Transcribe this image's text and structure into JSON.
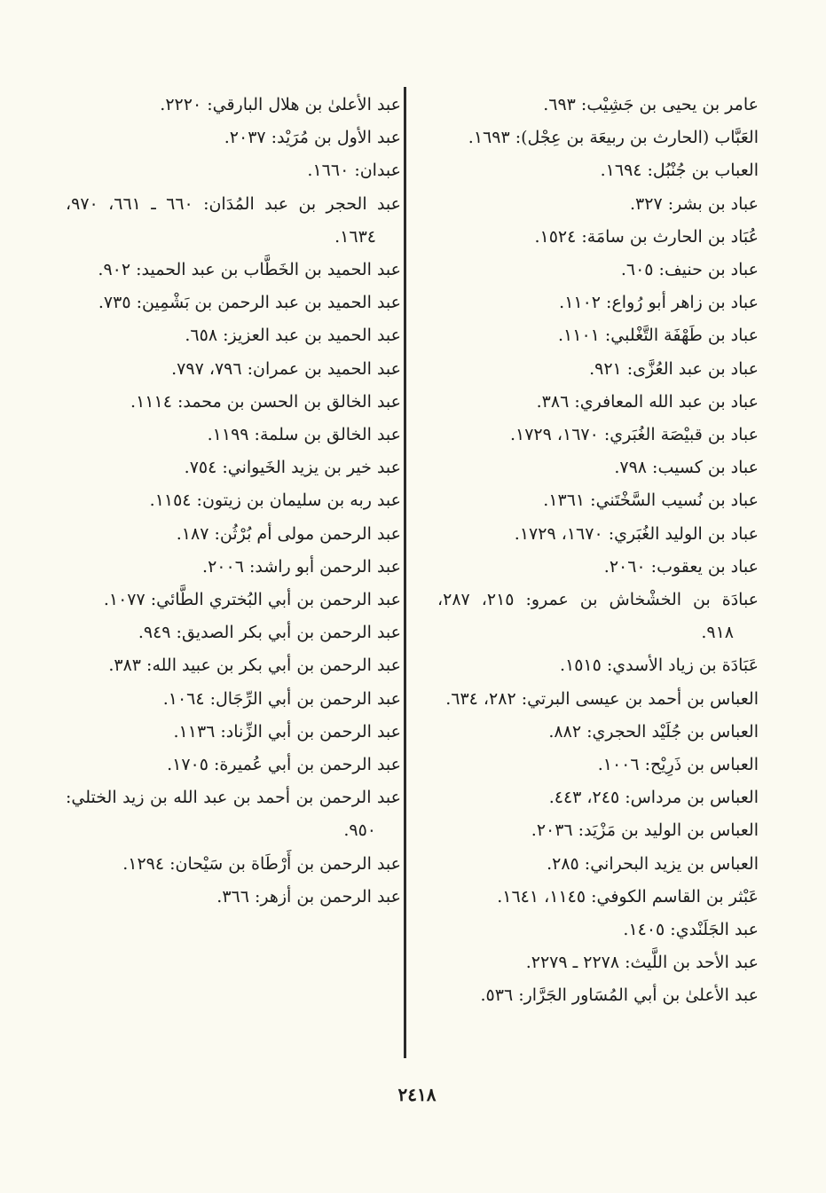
{
  "page_number": "٢٤١٨",
  "right_column": [
    "عامر بن يحيى بن جَشِيْب: ٦٩٣.",
    "العَبَّاب (الحارث بن ربيعَة بن عِجْل): ١٦٩٣.",
    "العباب بن جُنْبُل: ١٦٩٤.",
    "عباد بن بشر: ٣٢٧.",
    "عُبَاد بن الحارث بن سامَة: ١٥٢٤.",
    "عباد بن حنيف: ٦٠٥.",
    "عباد بن زاهر أبو رُواع: ١١٠٢.",
    "عباد بن طَهْفَة التَّغْلبي: ١١٠١.",
    "عباد بن عبد العُزَّى: ٩٢١.",
    "عباد بن عبد الله المعافري: ٣٨٦.",
    "عباد بن قبيْصَة الغُبَري: ١٦٧٠، ١٧٢٩.",
    "عباد بن كسيب: ٧٩٨.",
    "عباد بن نُسيب السَّخْتَني: ١٣٦١.",
    "عباد بن الوليد الغُبَري: ١٦٧٠، ١٧٢٩.",
    "عباد بن يعقوب: ٢٠٦٠.",
    "عبادَة بن الخشْخاش بن عمرو: ٢١٥، ٢٨٧، ٩١٨.",
    "عَبَادَة بن زياد الأسدي: ١٥١٥.",
    "العباس بن أحمد بن عيسى البرتي: ٢٨٢، ٦٣٤.",
    "العباس بن جُلَيْد الحجري: ٨٨٢.",
    "العباس بن ذَرِيْح: ١٠٠٦.",
    "العباس بن مرداس: ٢٤٥، ٤٤٣.",
    "العباس بن الوليد بن مَزْيَد: ٢٠٣٦.",
    "العباس بن يزيد البحراني: ٢٨٥.",
    "عَبْثر بن القاسم الكوفي: ١١٤٥، ١٦٤١.",
    "عبد الجَلَنْدي: ١٤٠٥.",
    "عبد الأحد بن اللَّيث: ٢٢٧٨ ـ ٢٢٧٩.",
    "عبد الأعلىٰ بن أبي المُسَاور الجَرَّار: ٥٣٦."
  ],
  "left_column": [
    "عبد الأعلىٰ بن هلال البارقي: ٢٢٢٠.",
    "عبد الأول بن مُرَيْد: ٢٠٣٧.",
    "عبدان: ١٦٦٠.",
    "عبد الحجر بن عبد المُدَان: ٦٦٠ ـ ٦٦١، ٩٧٠، ١٦٣٤.",
    "عبد الحميد بن الخَطَّاب بن عبد الحميد: ٩٠٢.",
    "عبد الحميد بن عبد الرحمن بن بَشْمِين: ٧٣٥.",
    "عبد الحميد بن عبد العزيز: ٦٥٨.",
    "عبد الحميد بن عمران: ٧٩٦، ٧٩٧.",
    "عبد الخالق بن الحسن بن محمد: ١١١٤.",
    "عبد الخالق بن سلمة: ١١٩٩.",
    "عبد خير بن يزيد الخَيواني: ٧٥٤.",
    "عبد ربه بن سليمان بن زيتون: ١١٥٤.",
    "عبد الرحمن مولى أم بُرْثُن: ١٨٧.",
    "عبد الرحمن أبو راشد: ٢٠٠٦.",
    "عبد الرحمن بن أبي البُختري الطَّائي: ١٠٧٧.",
    "عبد الرحمن بن أبي بكر الصديق: ٩٤٩.",
    "عبد الرحمن بن أبي بكر بن عبيد الله: ٣٨٣.",
    "عبد الرحمن بن أبي الرِّجَال: ١٠٦٤.",
    "عبد الرحمن بن أبي الزِّناد: ١١٣٦.",
    "عبد الرحمن بن أبي عُميرة: ١٧٠٥.",
    "عبد الرحمن بن أحمد بن عبد الله بن زيد الختلي: ٩٥٠.",
    "عبد الرحمن بن أَرْطَاة بن سَيْحان: ١٢٩٤.",
    "عبد الرحمن بن أزهر: ٣٦٦."
  ]
}
